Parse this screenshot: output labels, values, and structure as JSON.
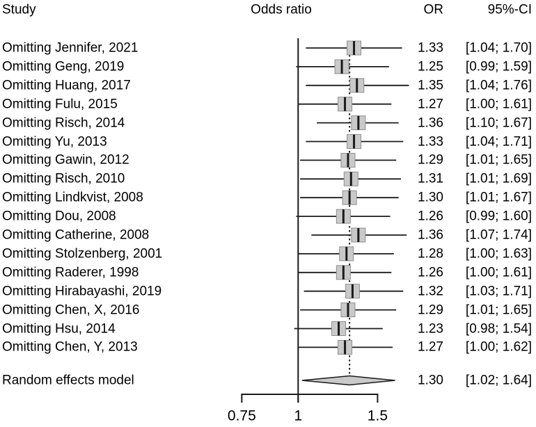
{
  "header": {
    "study": "Study",
    "plot": "Odds ratio",
    "or": "OR",
    "ci": "95%-CI"
  },
  "colors": {
    "line": "#1a1a1a",
    "square_fill": "#c9c9c9",
    "square_border": "#8f8f8f",
    "diamond_fill": "#c9c9c9",
    "diamond_border": "#1a1a1a",
    "text": "#000000"
  },
  "chart_data": {
    "type": "forest",
    "title": "Odds ratio",
    "x_scale": "log",
    "x_ticks": [
      0.75,
      1,
      1.5
    ],
    "tick_labels": [
      "0.75",
      "1",
      "1.5"
    ],
    "ref_line": 1,
    "overall_estimate": 1.3,
    "studies": [
      {
        "label": "Omitting Jennifer, 2021",
        "or": 1.33,
        "ci_low": 1.04,
        "ci_high": 1.7,
        "or_text": "1.33",
        "ci_text": "[1.04; 1.70]"
      },
      {
        "label": "Omitting Geng, 2019",
        "or": 1.25,
        "ci_low": 0.99,
        "ci_high": 1.59,
        "or_text": "1.25",
        "ci_text": "[0.99; 1.59]"
      },
      {
        "label": "Omitting Huang, 2017",
        "or": 1.35,
        "ci_low": 1.04,
        "ci_high": 1.76,
        "or_text": "1.35",
        "ci_text": "[1.04; 1.76]"
      },
      {
        "label": "Omitting Fulu, 2015",
        "or": 1.27,
        "ci_low": 1.0,
        "ci_high": 1.61,
        "or_text": "1.27",
        "ci_text": "[1.00; 1.61]"
      },
      {
        "label": "Omitting Risch, 2014",
        "or": 1.36,
        "ci_low": 1.1,
        "ci_high": 1.67,
        "or_text": "1.36",
        "ci_text": "[1.10; 1.67]"
      },
      {
        "label": "Omitting Yu, 2013",
        "or": 1.33,
        "ci_low": 1.04,
        "ci_high": 1.71,
        "or_text": "1.33",
        "ci_text": "[1.04; 1.71]"
      },
      {
        "label": "Omitting Gawin, 2012",
        "or": 1.29,
        "ci_low": 1.01,
        "ci_high": 1.65,
        "or_text": "1.29",
        "ci_text": "[1.01; 1.65]"
      },
      {
        "label": "Omitting Risch, 2010",
        "or": 1.31,
        "ci_low": 1.01,
        "ci_high": 1.69,
        "or_text": "1.31",
        "ci_text": "[1.01; 1.69]"
      },
      {
        "label": "Omitting Lindkvist, 2008",
        "or": 1.3,
        "ci_low": 1.01,
        "ci_high": 1.67,
        "or_text": "1.30",
        "ci_text": "[1.01; 1.67]"
      },
      {
        "label": "Omitting Dou, 2008",
        "or": 1.26,
        "ci_low": 0.99,
        "ci_high": 1.6,
        "or_text": "1.26",
        "ci_text": "[0.99; 1.60]"
      },
      {
        "label": "Omitting Catherine, 2008",
        "or": 1.36,
        "ci_low": 1.07,
        "ci_high": 1.74,
        "or_text": "1.36",
        "ci_text": "[1.07; 1.74]"
      },
      {
        "label": "Omitting Stolzenberg, 2001",
        "or": 1.28,
        "ci_low": 1.0,
        "ci_high": 1.63,
        "or_text": "1.28",
        "ci_text": "[1.00; 1.63]"
      },
      {
        "label": "Omitting Raderer, 1998",
        "or": 1.26,
        "ci_low": 1.0,
        "ci_high": 1.61,
        "or_text": "1.26",
        "ci_text": "[1.00; 1.61]"
      },
      {
        "label": "Omitting Hirabayashi, 2019",
        "or": 1.32,
        "ci_low": 1.03,
        "ci_high": 1.71,
        "or_text": "1.32",
        "ci_text": "[1.03; 1.71]"
      },
      {
        "label": "Omitting Chen, X, 2016",
        "or": 1.29,
        "ci_low": 1.01,
        "ci_high": 1.65,
        "or_text": "1.29",
        "ci_text": "[1.01; 1.65]"
      },
      {
        "label": "Omitting Hsu, 2014",
        "or": 1.23,
        "ci_low": 0.98,
        "ci_high": 1.54,
        "or_text": "1.23",
        "ci_text": "[0.98; 1.54]"
      },
      {
        "label": "Omitting Chen, Y, 2013",
        "or": 1.27,
        "ci_low": 1.0,
        "ci_high": 1.62,
        "or_text": "1.27",
        "ci_text": "[1.00; 1.62]"
      }
    ],
    "summary": {
      "label": "Random effects model",
      "or": 1.3,
      "ci_low": 1.02,
      "ci_high": 1.64,
      "or_text": "1.30",
      "ci_text": "[1.02; 1.64]"
    }
  }
}
